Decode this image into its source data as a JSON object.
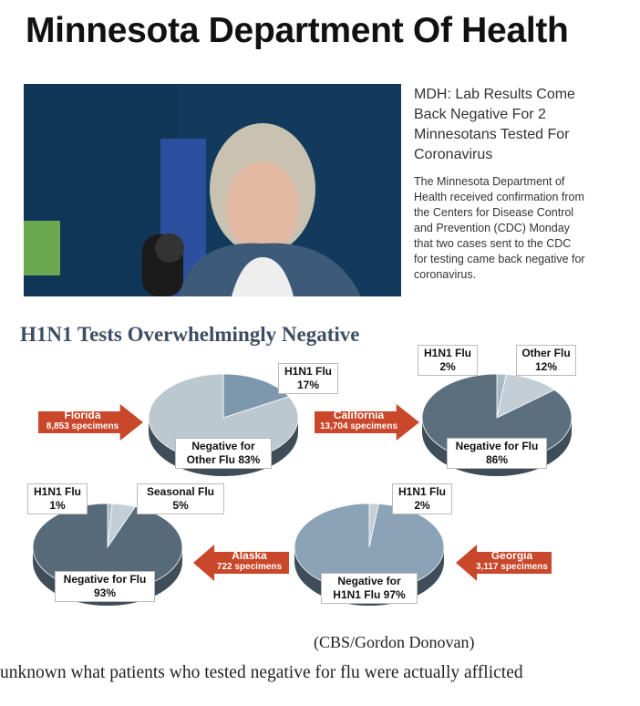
{
  "header": {
    "title": "Minnesota Department Of Health"
  },
  "article": {
    "headline": "MDH: Lab Results Come Back Negative For 2 Minnesotans Tested For Coronavirus",
    "body": "The Minnesota Department of Health received confirmation from the Centers for Disease Control and Prevention (CDC) Monday that two cases sent to the CDC for testing came back negative for coronavirus."
  },
  "infographic": {
    "title": "H1N1 Tests Overwhelmingly Negative",
    "type": "pie",
    "charts": [
      {
        "state": "Florida",
        "specimens": "8,853 specimens",
        "slices": [
          {
            "name": "H1N1 Flu",
            "value": 17,
            "value_label": "17%",
            "color": "#7d98ad"
          },
          {
            "name": "Negative for Other Flu",
            "value": 83,
            "value_label": "83%",
            "color": "#bcc8d0"
          }
        ]
      },
      {
        "state": "California",
        "specimens": "13,704 specimens",
        "slices": [
          {
            "name": "H1N1 Flu",
            "value": 2,
            "value_label": "2%",
            "color": "#a9bac6"
          },
          {
            "name": "Other Flu",
            "value": 12,
            "value_label": "12%",
            "color": "#c3ced6"
          },
          {
            "name": "Negative for Flu",
            "value": 86,
            "value_label": "86%",
            "color": "#5b6f7e"
          }
        ]
      },
      {
        "state": "Alaska",
        "specimens": "722 specimens",
        "slices": [
          {
            "name": "H1N1 Flu",
            "value": 1,
            "value_label": "1%",
            "color": "#a9bac6"
          },
          {
            "name": "Seasonal Flu",
            "value": 5,
            "value_label": "5%",
            "color": "#c3ced6"
          },
          {
            "name": "Negative for Flu",
            "value": 93,
            "value_label": "93%",
            "color": "#566a7a"
          }
        ]
      },
      {
        "state": "Georgia",
        "specimens": "3,117 specimens",
        "slices": [
          {
            "name": "H1N1 Flu",
            "value": 2,
            "value_label": "2%",
            "color": "#c3ced6"
          },
          {
            "name": "Negative for H1N1 Flu",
            "value": 97,
            "value_label": "97%",
            "color": "#8ba3b6"
          }
        ]
      }
    ]
  },
  "caption": "(CBS/Gordon Donovan)",
  "footer_text": "unknown what patients who tested negative for flu were actually afflicted"
}
